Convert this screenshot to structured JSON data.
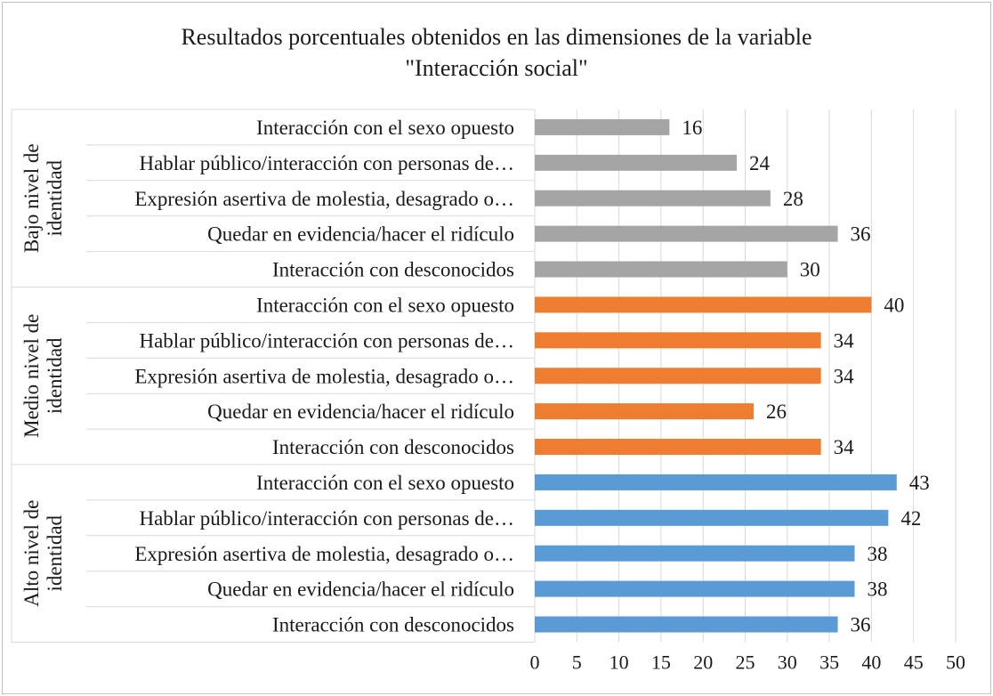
{
  "chart_data": {
    "type": "bar",
    "orientation": "horizontal",
    "title": "Resultados porcentuales obtenidos en las dimensiones de la variable",
    "title_line2": "\"Interacción social\"",
    "xlabel": "",
    "ylabel": "",
    "xlim": [
      0,
      50
    ],
    "x_ticks": [
      0,
      5,
      10,
      15,
      20,
      25,
      30,
      35,
      40,
      45,
      50
    ],
    "grid": "vertical",
    "groups": [
      {
        "label_lines": [
          "Bajo nivel de",
          "identidad"
        ],
        "color": "#a5a5a5",
        "categories": [
          "Interacción con el sexo opuesto",
          "Hablar público/interacción con personas de…",
          "Expresión asertiva de molestia, desagrado o…",
          "Quedar en evidencia/hacer el ridículo",
          "Interacción con desconocidos"
        ],
        "values": [
          16,
          24,
          28,
          36,
          30
        ]
      },
      {
        "label_lines": [
          "Medio nivel de",
          "identidad"
        ],
        "color": "#ed7d31",
        "categories": [
          "Interacción con el sexo opuesto",
          "Hablar público/interacción con personas de…",
          "Expresión asertiva de molestia, desagrado o…",
          "Quedar en evidencia/hacer el ridículo",
          "Interacción con desconocidos"
        ],
        "values": [
          40,
          34,
          34,
          26,
          34
        ]
      },
      {
        "label_lines": [
          "Alto nivel de",
          "identidad"
        ],
        "color": "#5b9bd5",
        "categories": [
          "Interacción con el sexo opuesto",
          "Hablar público/interacción con personas de…",
          "Expresión asertiva de molestia, desagrado o…",
          "Quedar en evidencia/hacer el ridículo",
          "Interacción con desconocidos"
        ],
        "values": [
          43,
          42,
          38,
          38,
          36
        ]
      }
    ]
  }
}
